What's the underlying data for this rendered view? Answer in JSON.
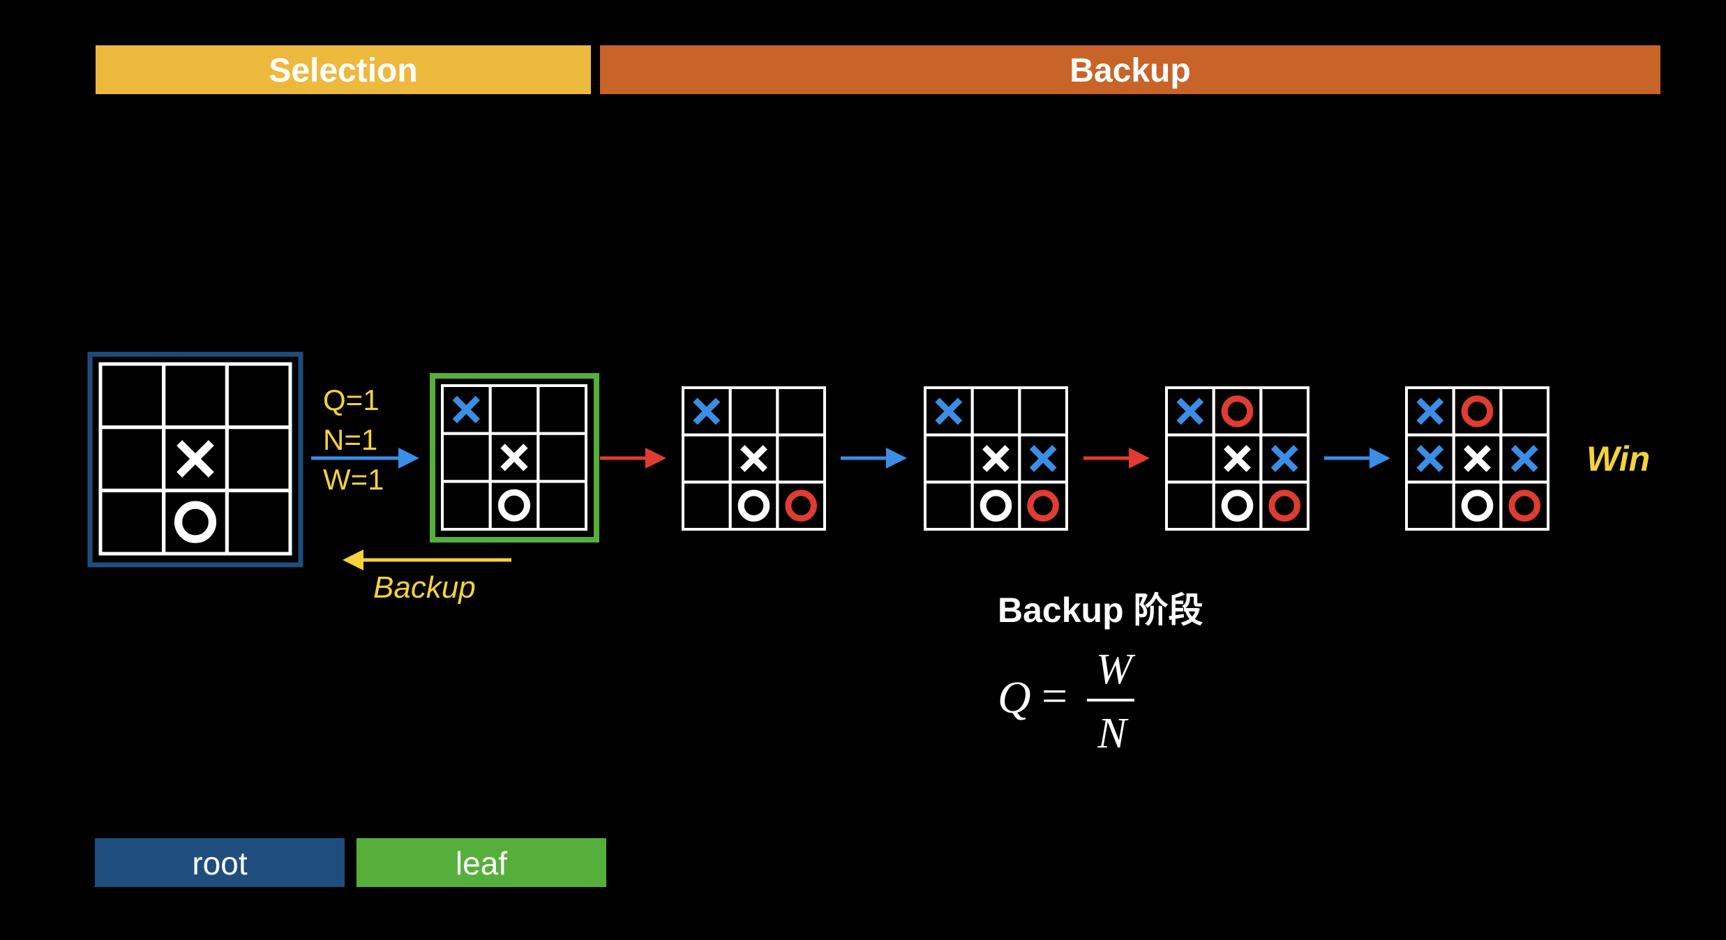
{
  "banners": {
    "selection": "Selection",
    "backup": "Backup"
  },
  "stats": {
    "q": "Q=1",
    "n": "N=1",
    "w": "W=1"
  },
  "backup_arrow_label": "Backup",
  "win_label": "Win",
  "phase_title": "Backup 阶段",
  "formula": {
    "lhs": "Q",
    "equals": "=",
    "numerator": "W",
    "denominator": "N"
  },
  "legend": {
    "root": "root",
    "leaf": "leaf"
  },
  "colors": {
    "selection": "#EDB93D",
    "backup": "#C96428",
    "root": "#1F4E7E",
    "leaf": "#56AF3A",
    "blue": "#3A8EE6",
    "red": "#E03C31",
    "stat_text": "#F5D23A"
  },
  "boards": [
    {
      "role": "root",
      "cells": [
        "",
        "",
        "",
        "",
        "x",
        "",
        "",
        "o",
        ""
      ]
    },
    {
      "role": "leaf",
      "cells": [
        "bx",
        "",
        "",
        "",
        "x",
        "",
        "",
        "o",
        ""
      ]
    },
    {
      "role": "rollout",
      "cells": [
        "bx",
        "",
        "",
        "",
        "x",
        "",
        "",
        "o",
        "ro"
      ]
    },
    {
      "role": "rollout",
      "cells": [
        "bx",
        "",
        "",
        "",
        "x",
        "bx",
        "",
        "o",
        "ro"
      ]
    },
    {
      "role": "rollout",
      "cells": [
        "bx",
        "ro",
        "",
        "",
        "x",
        "bx",
        "",
        "o",
        "ro"
      ]
    },
    {
      "role": "rollout",
      "cells": [
        "bx",
        "ro",
        "",
        "bx",
        "x",
        "bx",
        "",
        "o",
        "ro"
      ]
    }
  ]
}
